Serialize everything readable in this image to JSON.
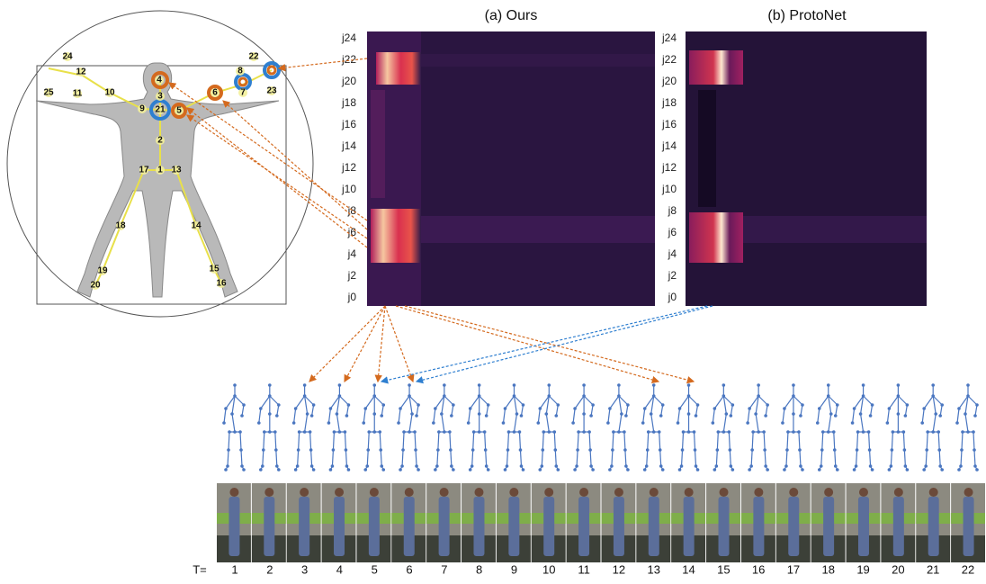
{
  "figure": {
    "panels": [
      {
        "title": "(a) Ours",
        "row_labels": [
          "j24",
          "j22",
          "j20",
          "j18",
          "j16",
          "j14",
          "j12",
          "j10",
          "j8",
          "j6",
          "j4",
          "j2",
          "j0"
        ]
      },
      {
        "title": "(b) ProtoNet",
        "row_labels": [
          "j24",
          "j22",
          "j20",
          "j18",
          "j16",
          "j14",
          "j12",
          "j10",
          "j8",
          "j6",
          "j4",
          "j2",
          "j0"
        ]
      }
    ],
    "joints": [
      "1",
      "2",
      "3",
      "4",
      "5",
      "6",
      "7",
      "8",
      "9",
      "10",
      "11",
      "12",
      "13",
      "14",
      "15",
      "16",
      "17",
      "18",
      "19",
      "20",
      "21",
      "22",
      "23",
      "24",
      "25"
    ],
    "frames": {
      "prefix": "T=",
      "labels": [
        "1",
        "2",
        "3",
        "4",
        "5",
        "6",
        "7",
        "8",
        "9",
        "10",
        "11",
        "12",
        "13",
        "14",
        "15",
        "16",
        "17",
        "18",
        "19",
        "20",
        "21",
        "22"
      ]
    }
  }
}
